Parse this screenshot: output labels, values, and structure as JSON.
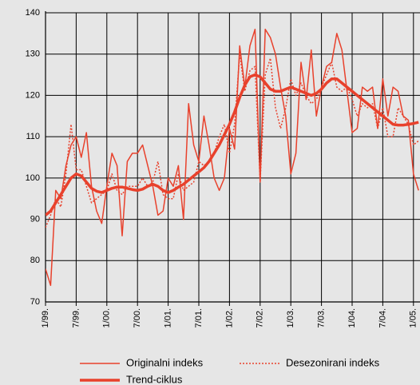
{
  "chart_data": {
    "type": "line",
    "categories": [
      "1/99.",
      null,
      null,
      null,
      null,
      null,
      "7/99.",
      null,
      null,
      null,
      null,
      null,
      "1/00.",
      null,
      null,
      null,
      null,
      null,
      "7/00.",
      null,
      null,
      null,
      null,
      null,
      "1/01.",
      null,
      null,
      null,
      null,
      null,
      "7/01.",
      null,
      null,
      null,
      null,
      null,
      "1/02.",
      null,
      null,
      null,
      null,
      null,
      "7/02.",
      null,
      null,
      null,
      null,
      null,
      "1/03.",
      null,
      null,
      null,
      null,
      null,
      "7/03.",
      null,
      null,
      null,
      null,
      null,
      "1/04.",
      null,
      null,
      null,
      null,
      null,
      "7/04.",
      null,
      null,
      null,
      null,
      null,
      "1/05.",
      null
    ],
    "series": [
      {
        "name": "Originalni indeks",
        "color": "#e8412c",
        "line_style": "solid",
        "values": [
          78,
          74,
          97,
          95,
          103,
          108,
          110,
          105,
          111,
          98,
          92,
          89,
          98,
          106,
          103,
          86,
          104,
          106,
          106,
          108,
          103,
          98,
          91,
          92,
          100,
          98,
          103,
          90,
          118,
          108,
          104,
          115,
          108,
          100,
          97,
          100,
          112,
          107,
          132,
          122,
          132,
          136,
          99,
          136,
          134,
          130,
          122,
          115,
          101,
          106,
          128,
          119,
          131,
          115,
          122,
          127,
          128,
          135,
          131,
          121,
          111,
          112,
          122,
          121,
          122,
          112,
          124,
          115,
          122,
          121,
          115,
          114,
          101,
          97
        ]
      },
      {
        "name": "Desezonirani indeks",
        "color": "#e8412c",
        "line_style": "dotted",
        "values": [
          88,
          91,
          95,
          93,
          101,
          113,
          102,
          102,
          98,
          94,
          95,
          96,
          97,
          101,
          97,
          96,
          98,
          98,
          98,
          100,
          98,
          99,
          104,
          96,
          95,
          95,
          101,
          97,
          98,
          99,
          104,
          103,
          104,
          106,
          110,
          113,
          106,
          113,
          130,
          121,
          126,
          127,
          99,
          125,
          129,
          117,
          112,
          117,
          124,
          120,
          123,
          120,
          118,
          119,
          122,
          125,
          128,
          122,
          121,
          122,
          119,
          115,
          118,
          117,
          118,
          112,
          117,
          110,
          110,
          117,
          115,
          113,
          108,
          109
        ]
      },
      {
        "name": "Trend-ciklus",
        "color": "#e8412c",
        "line_style": "thick",
        "values": [
          91,
          92,
          94,
          96,
          98,
          100,
          101,
          100.5,
          99,
          97.5,
          96.8,
          96.5,
          97,
          97.5,
          97.8,
          97.8,
          97.5,
          97.2,
          97,
          97.3,
          98,
          98.5,
          98,
          97,
          96.5,
          97,
          97.8,
          98.5,
          99.5,
          100.5,
          101.5,
          102.5,
          104,
          106,
          108,
          110.5,
          113,
          116,
          119.5,
          122.5,
          124.5,
          125,
          124.5,
          123,
          121.5,
          121,
          121,
          121.5,
          122,
          121.5,
          121,
          120.5,
          120,
          120.5,
          121.5,
          123,
          124,
          124,
          123,
          122,
          121,
          120,
          119,
          118,
          117,
          116,
          115,
          114,
          113,
          112.8,
          112.8,
          113,
          113.2,
          113.5
        ]
      }
    ],
    "ylim": [
      70,
      140
    ],
    "yticks": [
      70,
      80,
      90,
      100,
      110,
      120,
      130,
      140
    ],
    "grid": true
  }
}
